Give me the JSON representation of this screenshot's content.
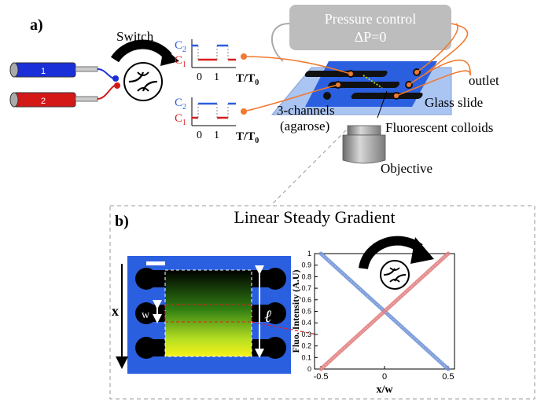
{
  "panel_a": {
    "label": "a)",
    "switch_label": "Switch",
    "syringe_1": "1",
    "syringe_2": "2",
    "pulse_top": {
      "c2": "C",
      "c2_sub": "2",
      "c1": "C",
      "c1_sub": "1",
      "tick0": "0",
      "tick1": "1",
      "axis": "T/T",
      "axis_sub": "0"
    },
    "pulse_bottom": {
      "c2": "C",
      "c2_sub": "2",
      "c1": "C",
      "c1_sub": "1",
      "tick0": "0",
      "tick1": "1",
      "axis": "T/T",
      "axis_sub": "0"
    },
    "pressure_title": "Pressure control",
    "pressure_value": "ΔP=0",
    "outlet": "outlet",
    "glass_slide": "Glass slide",
    "channels_line1": "3-channels",
    "channels_line2": "(agarose)",
    "colloids": "Fluorescent colloids",
    "objective": "Objective"
  },
  "panel_b": {
    "label": "b)",
    "title": "Linear Steady Gradient",
    "x_label": "x",
    "w_label": "w",
    "ell_label": "ℓ"
  },
  "chart_data": {
    "type": "line",
    "xlabel": "x/w",
    "ylabel": "Fluo. Intensity (A.U)",
    "xlim": [
      -0.55,
      0.55
    ],
    "ylim": [
      0,
      1
    ],
    "xticks": [
      "-0.5",
      "0",
      "0.5"
    ],
    "yticks": [
      "0",
      "0.1",
      "0.2",
      "0.3",
      "0.4",
      "0.5",
      "0.6",
      "0.7",
      "0.8",
      "0.9",
      "1"
    ],
    "series": [
      {
        "color": "#6b8fd6",
        "x": [
          -0.5,
          0.5
        ],
        "y": [
          1.0,
          0.0
        ]
      },
      {
        "color": "#e07b7b",
        "x": [
          -0.5,
          0.5
        ],
        "y": [
          0.0,
          1.0
        ]
      }
    ]
  },
  "colors": {
    "blue": "#2a5fe0",
    "red": "#d81e1e",
    "orange": "#f07a30",
    "slide": "#9dbbf0"
  }
}
